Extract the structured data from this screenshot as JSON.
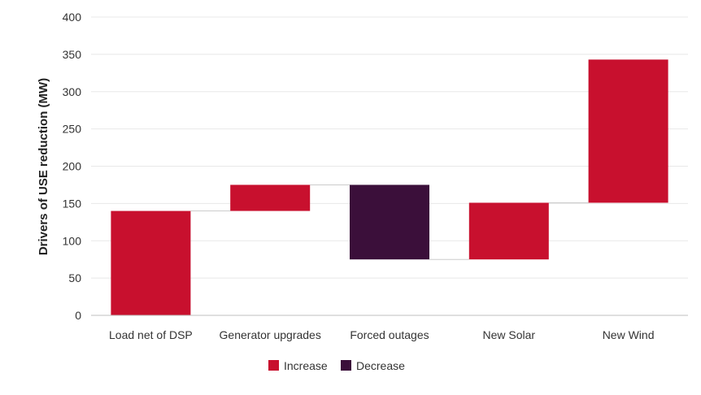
{
  "chart_data": {
    "type": "bar",
    "subtype": "waterfall",
    "title": "",
    "xlabel": "",
    "ylabel": "Drivers of USE reduction (MW)",
    "ylim": [
      0,
      400
    ],
    "yticks": [
      0,
      50,
      100,
      150,
      200,
      250,
      300,
      350,
      400
    ],
    "grid": true,
    "legend_position": "bottom",
    "categories": [
      "Load net of DSP",
      "Generator upgrades",
      "Forced outages",
      "New Solar",
      "New Wind"
    ],
    "bars": [
      {
        "category": "Load net of DSP",
        "start": 0,
        "end": 140,
        "kind": "Increase"
      },
      {
        "category": "Generator upgrades",
        "start": 140,
        "end": 175,
        "kind": "Increase"
      },
      {
        "category": "Forced outages",
        "start": 175,
        "end": 75,
        "kind": "Decrease"
      },
      {
        "category": "New Solar",
        "start": 75,
        "end": 151,
        "kind": "Increase"
      },
      {
        "category": "New Wind",
        "start": 151,
        "end": 343,
        "kind": "Increase"
      }
    ],
    "legend": [
      {
        "name": "Increase",
        "color": "#c8102e"
      },
      {
        "name": "Decrease",
        "color": "#3b0f3a"
      }
    ],
    "colors": {
      "grid": "#e8e8e8",
      "axis": "#bfbfbf",
      "connector": "#cccccc"
    }
  }
}
